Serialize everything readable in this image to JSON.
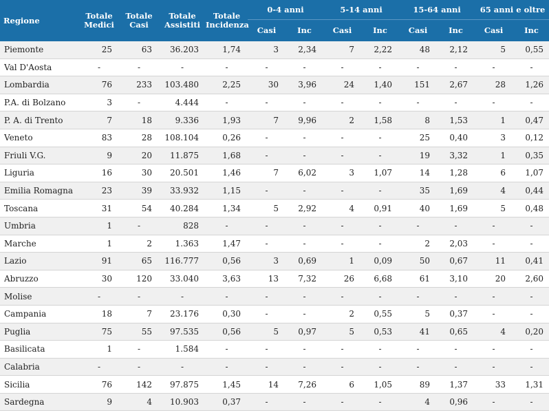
{
  "headers": {
    "regione": "Regione",
    "totale_medici": "Totale Medici",
    "totale_casi": "Totale Casi",
    "totale_assistiti": "Totale Assistiti",
    "totale_incidenza": "Totale Incidenza",
    "groups": [
      "0-4 anni",
      "5-14 anni",
      "15-64 anni",
      "65 anni e oltre"
    ],
    "sub_casi": "Casi",
    "sub_inc": "Inc"
  },
  "rows": [
    [
      "Piemonte",
      "25",
      "63",
      "36.203",
      "1,74",
      "3",
      "2,34",
      "7",
      "2,22",
      "48",
      "2,12",
      "5",
      "0,55"
    ],
    [
      "Val D'Aosta",
      "-",
      "-",
      "-",
      "-",
      "-",
      "-",
      "-",
      "-",
      "-",
      "-",
      "-",
      "-"
    ],
    [
      "Lombardia",
      "76",
      "233",
      "103.480",
      "2,25",
      "30",
      "3,96",
      "24",
      "1,40",
      "151",
      "2,67",
      "28",
      "1,26"
    ],
    [
      "P.A. di Bolzano",
      "3",
      "-",
      "4.444",
      "-",
      "-",
      "-",
      "-",
      "-",
      "-",
      "-",
      "-",
      "-"
    ],
    [
      "P. A. di Trento",
      "7",
      "18",
      "9.336",
      "1,93",
      "7",
      "9,96",
      "2",
      "1,58",
      "8",
      "1,53",
      "1",
      "0,47"
    ],
    [
      "Veneto",
      "83",
      "28",
      "108.104",
      "0,26",
      "-",
      "-",
      "-",
      "-",
      "25",
      "0,40",
      "3",
      "0,12"
    ],
    [
      "Friuli V.G.",
      "9",
      "20",
      "11.875",
      "1,68",
      "-",
      "-",
      "-",
      "-",
      "19",
      "3,32",
      "1",
      "0,35"
    ],
    [
      "Liguria",
      "16",
      "30",
      "20.501",
      "1,46",
      "7",
      "6,02",
      "3",
      "1,07",
      "14",
      "1,28",
      "6",
      "1,07"
    ],
    [
      "Emilia Romagna",
      "23",
      "39",
      "33.932",
      "1,15",
      "-",
      "-",
      "-",
      "-",
      "35",
      "1,69",
      "4",
      "0,44"
    ],
    [
      "Toscana",
      "31",
      "54",
      "40.284",
      "1,34",
      "5",
      "2,92",
      "4",
      "0,91",
      "40",
      "1,69",
      "5",
      "0,48"
    ],
    [
      "Umbria",
      "1",
      "-",
      "828",
      "-",
      "-",
      "-",
      "-",
      "-",
      "-",
      "-",
      "-",
      "-"
    ],
    [
      "Marche",
      "1",
      "2",
      "1.363",
      "1,47",
      "-",
      "-",
      "-",
      "-",
      "2",
      "2,03",
      "-",
      "-"
    ],
    [
      "Lazio",
      "91",
      "65",
      "116.777",
      "0,56",
      "3",
      "0,69",
      "1",
      "0,09",
      "50",
      "0,67",
      "11",
      "0,41"
    ],
    [
      "Abruzzo",
      "30",
      "120",
      "33.040",
      "3,63",
      "13",
      "7,32",
      "26",
      "6,68",
      "61",
      "3,10",
      "20",
      "2,60"
    ],
    [
      "Molise",
      "-",
      "-",
      "-",
      "-",
      "-",
      "-",
      "-",
      "-",
      "-",
      "-",
      "-",
      "-"
    ],
    [
      "Campania",
      "18",
      "7",
      "23.176",
      "0,30",
      "-",
      "-",
      "2",
      "0,55",
      "5",
      "0,37",
      "-",
      "-"
    ],
    [
      "Puglia",
      "75",
      "55",
      "97.535",
      "0,56",
      "5",
      "0,97",
      "5",
      "0,53",
      "41",
      "0,65",
      "4",
      "0,20"
    ],
    [
      "Basilicata",
      "1",
      "-",
      "1.584",
      "-",
      "-",
      "-",
      "-",
      "-",
      "-",
      "-",
      "-",
      "-"
    ],
    [
      "Calabria",
      "-",
      "-",
      "-",
      "-",
      "-",
      "-",
      "-",
      "-",
      "-",
      "-",
      "-",
      "-"
    ],
    [
      "Sicilia",
      "76",
      "142",
      "97.875",
      "1,45",
      "14",
      "7,26",
      "6",
      "1,05",
      "89",
      "1,37",
      "33",
      "1,31"
    ],
    [
      "Sardegna",
      "9",
      "4",
      "10.903",
      "0,37",
      "-",
      "-",
      "-",
      "-",
      "4",
      "0,96",
      "-",
      "-"
    ]
  ]
}
